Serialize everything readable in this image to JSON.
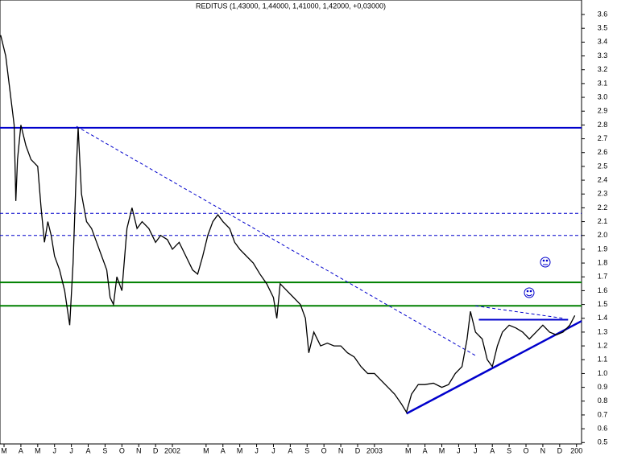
{
  "chart_data": {
    "type": "line",
    "title": "REDITUS (1,43000, 1,44000, 1,41000, 1,42000, +0,03000)",
    "xlim": [
      -0.24,
      34.3
    ],
    "ylim": [
      0.49,
      3.705
    ],
    "xticks": [
      {
        "value": 0,
        "label": "M"
      },
      {
        "value": 1,
        "label": "A"
      },
      {
        "value": 2,
        "label": "M"
      },
      {
        "value": 3,
        "label": "J"
      },
      {
        "value": 4,
        "label": "J"
      },
      {
        "value": 5,
        "label": "A"
      },
      {
        "value": 6,
        "label": "S"
      },
      {
        "value": 7,
        "label": "O"
      },
      {
        "value": 8,
        "label": "N"
      },
      {
        "value": 9,
        "label": "D"
      },
      {
        "value": 10,
        "label": "2002"
      },
      {
        "value": 12,
        "label": "M"
      },
      {
        "value": 13,
        "label": "A"
      },
      {
        "value": 14,
        "label": "M"
      },
      {
        "value": 15,
        "label": "J"
      },
      {
        "value": 16,
        "label": "J"
      },
      {
        "value": 17,
        "label": "A"
      },
      {
        "value": 18,
        "label": "S"
      },
      {
        "value": 19,
        "label": "O"
      },
      {
        "value": 20,
        "label": "N"
      },
      {
        "value": 21,
        "label": "D"
      },
      {
        "value": 22,
        "label": "2003"
      },
      {
        "value": 24,
        "label": "M"
      },
      {
        "value": 25,
        "label": "A"
      },
      {
        "value": 26,
        "label": "M"
      },
      {
        "value": 27,
        "label": "J"
      },
      {
        "value": 28,
        "label": "J"
      },
      {
        "value": 29,
        "label": "A"
      },
      {
        "value": 30,
        "label": "S"
      },
      {
        "value": 31,
        "label": "O"
      },
      {
        "value": 32,
        "label": "N"
      },
      {
        "value": 33,
        "label": "D"
      },
      {
        "value": 34,
        "label": "200"
      }
    ],
    "yticks": [
      3.6,
      3.5,
      3.4,
      3.3,
      3.2,
      3.1,
      {
        "value": 3,
        "label": "3.0"
      },
      2.9,
      2.8,
      2.7,
      2.6,
      2.5,
      2.4,
      2.3,
      2.2,
      2.1,
      {
        "value": 2,
        "label": "2.0"
      },
      1.9,
      1.8,
      1.7,
      1.6,
      1.5,
      1.4,
      1.3,
      1.2,
      1.1,
      {
        "value": 1,
        "label": "1.0"
      },
      0.9,
      0.8,
      0.7,
      0.6,
      0.5
    ],
    "series": [
      {
        "color": "#000000",
        "x": [
          -0.2,
          0.1,
          0.3,
          0.5,
          0.6,
          0.7,
          0.8,
          1.0,
          1.3,
          1.6,
          2.0,
          2.2,
          2.4,
          2.6,
          2.8,
          3.0,
          3.3,
          3.6,
          3.9,
          4.1,
          4.3,
          4.4,
          4.6,
          4.9,
          5.2,
          5.5,
          5.8,
          6.1,
          6.3,
          6.5,
          6.7,
          7.0,
          7.3,
          7.6,
          7.9,
          8.2,
          8.6,
          9.0,
          9.3,
          9.7,
          10.0,
          10.4,
          10.8,
          11.2,
          11.5,
          11.8,
          12.1,
          12.4,
          12.7,
          13.0,
          13.4,
          13.7,
          14.0,
          14.4,
          14.8,
          15.2,
          15.6,
          16.0,
          16.2,
          16.4,
          16.8,
          17.2,
          17.6,
          17.9,
          18.1,
          18.4,
          18.8,
          19.2,
          19.6,
          20.0,
          20.4,
          20.8,
          21.2,
          21.6,
          22.0,
          22.4,
          22.8,
          23.2,
          23.6,
          23.9,
          24.2,
          24.6,
          25.0,
          25.5,
          26.0,
          26.4,
          26.8,
          27.2,
          27.5,
          27.7,
          28.0,
          28.4,
          28.7,
          29.0,
          29.3,
          29.6,
          30.0,
          30.4,
          30.8,
          31.2,
          31.6,
          32.0,
          32.4,
          32.8,
          33.2,
          33.6,
          33.9
        ],
        "values": [
          3.45,
          3.3,
          3.1,
          2.9,
          2.8,
          2.25,
          2.55,
          2.8,
          2.65,
          2.55,
          2.5,
          2.2,
          1.95,
          2.1,
          2.0,
          1.85,
          1.75,
          1.6,
          1.35,
          1.8,
          2.5,
          2.78,
          2.3,
          2.1,
          2.05,
          1.95,
          1.85,
          1.75,
          1.55,
          1.5,
          1.7,
          1.6,
          2.05,
          2.2,
          2.05,
          2.1,
          2.05,
          1.95,
          2.0,
          1.97,
          1.9,
          1.95,
          1.85,
          1.75,
          1.72,
          1.85,
          2.0,
          2.1,
          2.15,
          2.1,
          2.05,
          1.95,
          1.9,
          1.85,
          1.8,
          1.72,
          1.65,
          1.55,
          1.4,
          1.65,
          1.6,
          1.55,
          1.5,
          1.4,
          1.15,
          1.3,
          1.2,
          1.22,
          1.2,
          1.2,
          1.15,
          1.12,
          1.05,
          1.0,
          1.0,
          0.95,
          0.9,
          0.85,
          0.78,
          0.72,
          0.85,
          0.92,
          0.92,
          0.93,
          0.9,
          0.92,
          1.0,
          1.05,
          1.25,
          1.45,
          1.3,
          1.25,
          1.1,
          1.05,
          1.2,
          1.3,
          1.35,
          1.33,
          1.3,
          1.25,
          1.3,
          1.35,
          1.3,
          1.28,
          1.3,
          1.35,
          1.42
        ]
      }
    ],
    "hlines": [
      {
        "value": 2.78,
        "color": "#0000cc",
        "style": "solid"
      },
      {
        "value": 2.16,
        "color": "#0000cc",
        "style": "dashed"
      },
      {
        "value": 2.0,
        "color": "#0000cc",
        "style": "dashed"
      },
      {
        "value": 1.66,
        "color": "#008000",
        "style": "solid"
      },
      {
        "value": 1.49,
        "color": "#008000",
        "style": "solid"
      },
      {
        "value": 1.39,
        "color": "#0000cc",
        "style": "solid",
        "x": [
          28.2,
          33.5
        ]
      }
    ],
    "trendlines": [
      {
        "x": [
          4.3,
          28.0
        ],
        "y": [
          2.79,
          1.13
        ],
        "color": "#0000cc",
        "style": "dashed"
      },
      {
        "x": [
          23.9,
          34.3
        ],
        "y": [
          0.71,
          1.38
        ],
        "color": "#0000cc",
        "style": "solid"
      },
      {
        "x": [
          28.0,
          33.2
        ],
        "y": [
          1.49,
          1.4
        ],
        "color": "#0000cc",
        "style": "dashed"
      }
    ]
  }
}
